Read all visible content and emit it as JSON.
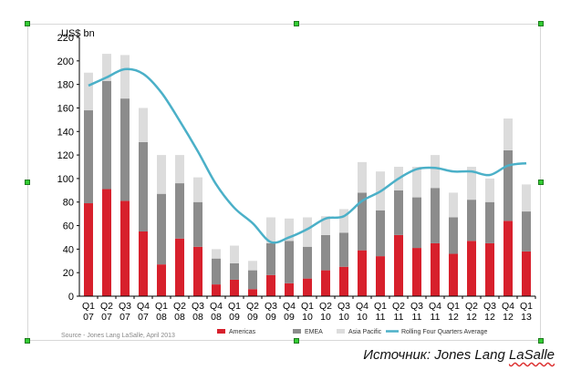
{
  "chart_data": {
    "type": "bar",
    "stacked": true,
    "ylabel": "US$ bn",
    "ylim": [
      0,
      220
    ],
    "yticks": [
      0,
      20,
      40,
      60,
      80,
      100,
      120,
      140,
      160,
      180,
      200,
      220
    ],
    "categories": [
      [
        "Q1",
        "07"
      ],
      [
        "Q2",
        "07"
      ],
      [
        "Q3",
        "07"
      ],
      [
        "Q4",
        "07"
      ],
      [
        "Q1",
        "08"
      ],
      [
        "Q2",
        "08"
      ],
      [
        "Q3",
        "08"
      ],
      [
        "Q4",
        "08"
      ],
      [
        "Q1",
        "09"
      ],
      [
        "Q2",
        "09"
      ],
      [
        "Q3",
        "09"
      ],
      [
        "Q4",
        "09"
      ],
      [
        "Q1",
        "10"
      ],
      [
        "Q2",
        "10"
      ],
      [
        "Q3",
        "10"
      ],
      [
        "Q4",
        "10"
      ],
      [
        "Q1",
        "11"
      ],
      [
        "Q2",
        "11"
      ],
      [
        "Q3",
        "11"
      ],
      [
        "Q4",
        "11"
      ],
      [
        "Q1",
        "12"
      ],
      [
        "Q2",
        "12"
      ],
      [
        "Q3",
        "12"
      ],
      [
        "Q4",
        "12"
      ],
      [
        "Q1",
        "13"
      ]
    ],
    "series": [
      {
        "name": "Americas",
        "color": "#d7202c",
        "values": [
          79,
          91,
          81,
          55,
          27,
          49,
          42,
          10,
          14,
          6,
          18,
          11,
          15,
          22,
          25,
          39,
          34,
          52,
          41,
          45,
          36,
          47,
          45,
          64,
          38
        ]
      },
      {
        "name": "EMEA",
        "color": "#8c8c8c",
        "values": [
          79,
          92,
          87,
          76,
          60,
          47,
          38,
          22,
          14,
          16,
          27,
          36,
          27,
          30,
          29,
          49,
          39,
          38,
          43,
          47,
          31,
          35,
          35,
          60,
          34
        ]
      },
      {
        "name": "Asia Pacific",
        "color": "#dcdcdc",
        "values": [
          32,
          23,
          37,
          29,
          33,
          24,
          21,
          8,
          15,
          8,
          22,
          19,
          25,
          16,
          20,
          26,
          33,
          20,
          26,
          28,
          21,
          28,
          20,
          27,
          23
        ]
      }
    ],
    "line": {
      "name": "Rolling Four Quarters Average",
      "color": "#4bb0c8",
      "values": [
        179,
        186,
        193,
        189,
        173,
        149,
        123,
        95,
        75,
        62,
        46,
        50,
        57,
        66,
        68,
        81,
        89,
        100,
        108,
        109,
        106,
        106,
        103,
        111,
        113
      ]
    },
    "source": "Source - Jones Lang LaSalle, April 2013"
  },
  "caption": {
    "prefix": "Источник: Jones Lang ",
    "underlined": "LaSalle"
  }
}
